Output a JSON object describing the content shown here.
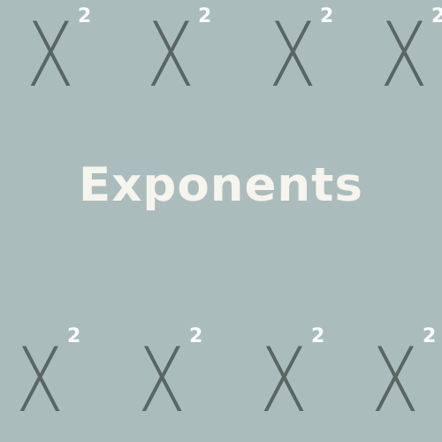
{
  "title": "Exponents",
  "terms": {
    "base": "X",
    "exponent": "2"
  },
  "colors": {
    "background": "#abbcbd",
    "base_text": "#5a6663",
    "exponent_text": "#ffffff",
    "title_text": "#f5f4ed"
  }
}
